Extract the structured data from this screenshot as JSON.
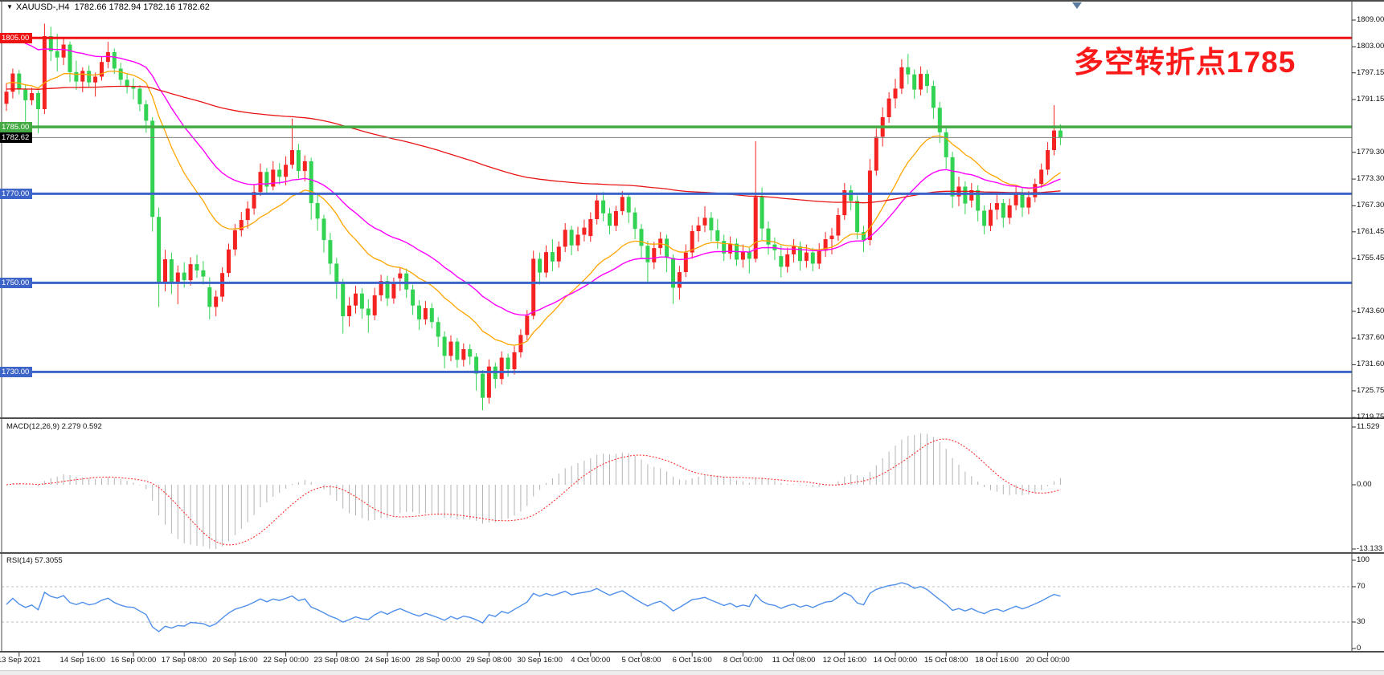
{
  "header": {
    "dropdown_icon": "▼",
    "symbol": "XAUUSD-,H4",
    "ohlc": "1782.66 1782.94 1782.16 1782.62"
  },
  "annotation": {
    "text": "多空转折点1785",
    "color": "#fb1a1a"
  },
  "indicators": {
    "macd_label": "MACD(12,26,9) 2.279 0.592",
    "rsi_label": "RSI(14) 57.3055"
  },
  "chart_data": {
    "type": "candlestick",
    "symbol": "XAUUSD-",
    "timeframe": "H4",
    "quote": {
      "open": 1782.66,
      "high": 1782.94,
      "low": 1782.16,
      "close": 1782.62
    },
    "colors": {
      "candle_up": "#f52222",
      "candle_down": "#32d252",
      "ma_fast": "#ffa500",
      "ma_mid": "#ff00ff",
      "ma_slow": "#e81414",
      "macd_hist": "#b3b3b3",
      "macd_signal": "#ff3030",
      "rsi_line": "#4f8feb",
      "current_price_line": "#808080"
    },
    "levels": [
      {
        "price": 1805.0,
        "color": "#ef1212",
        "width": 3,
        "badge_text": "1805.00"
      },
      {
        "price": 1785.0,
        "color": "#44aa44",
        "width": 3.5,
        "badge_text": "1785.00"
      },
      {
        "price": 1770.0,
        "color": "#3d64c8",
        "width": 3,
        "badge_text": "1770.00"
      },
      {
        "price": 1750.0,
        "color": "#3d64c8",
        "width": 3,
        "badge_text": "1750.00"
      },
      {
        "price": 1730.0,
        "color": "#3d64c8",
        "width": 3,
        "badge_text": "1730.00"
      }
    ],
    "current_price": {
      "value": 1782.62,
      "badge_text": "1782.62",
      "badge_color": "#000000"
    },
    "price_axis": {
      "range_top": 1809.0,
      "range_bottom": 1719.75,
      "ticks": [
        {
          "text": "1809.00",
          "price": 1809.0
        },
        {
          "text": "1803.00",
          "price": 1803.0
        },
        {
          "text": "1797.15",
          "price": 1797.15
        },
        {
          "text": "1791.15",
          "price": 1791.15
        },
        {
          "text": "1779.30",
          "price": 1779.3
        },
        {
          "text": "1773.30",
          "price": 1773.3
        },
        {
          "text": "1767.30",
          "price": 1767.3
        },
        {
          "text": "1761.45",
          "price": 1761.45
        },
        {
          "text": "1755.45",
          "price": 1755.45
        },
        {
          "text": "1743.60",
          "price": 1743.6
        },
        {
          "text": "1737.60",
          "price": 1737.6
        },
        {
          "text": "1731.60",
          "price": 1731.6
        },
        {
          "text": "1725.75",
          "price": 1725.75
        },
        {
          "text": "1719.75",
          "price": 1719.75
        }
      ]
    },
    "macd_axis": {
      "ticks": [
        {
          "text": "11.529",
          "value": 11.529
        },
        {
          "text": "0.00",
          "value": 0
        },
        {
          "text": "-13.133",
          "value": -13.133
        }
      ],
      "params": {
        "fast": 12,
        "slow": 26,
        "signal": 9
      },
      "last_value": 2.279,
      "last_signal": 0.592
    },
    "rsi_axis": {
      "ticks": [
        {
          "text": "100",
          "value": 100
        },
        {
          "text": "70",
          "value": 70
        },
        {
          "text": "30",
          "value": 30
        },
        {
          "text": "0",
          "value": 0
        }
      ],
      "levels": [
        70,
        30
      ],
      "period": 14,
      "last_value": 57.3055
    },
    "time_axis": [
      {
        "text": "13 Sep 2021",
        "bar": 0
      },
      {
        "text": "14 Sep 16:00",
        "bar": 10
      },
      {
        "text": "16 Sep 00:00",
        "bar": 18
      },
      {
        "text": "17 Sep 08:00",
        "bar": 26
      },
      {
        "text": "20 Sep 16:00",
        "bar": 34
      },
      {
        "text": "22 Sep 00:00",
        "bar": 42
      },
      {
        "text": "23 Sep 08:00",
        "bar": 50
      },
      {
        "text": "24 Sep 16:00",
        "bar": 58
      },
      {
        "text": "28 Sep 00:00",
        "bar": 66
      },
      {
        "text": "29 Sep 08:00",
        "bar": 74
      },
      {
        "text": "30 Sep 16:00",
        "bar": 82
      },
      {
        "text": "4 Oct 00:00",
        "bar": 90
      },
      {
        "text": "5 Oct 08:00",
        "bar": 98
      },
      {
        "text": "6 Oct 16:00",
        "bar": 106
      },
      {
        "text": "8 Oct 00:00",
        "bar": 114
      },
      {
        "text": "11 Oct 08:00",
        "bar": 122
      },
      {
        "text": "12 Oct 16:00",
        "bar": 130
      },
      {
        "text": "14 Oct 00:00",
        "bar": 138
      },
      {
        "text": "15 Oct 08:00",
        "bar": 146
      },
      {
        "text": "18 Oct 16:00",
        "bar": 154
      },
      {
        "text": "20 Oct 00:00",
        "bar": 162
      }
    ],
    "lead_in_bars": 2,
    "moving_averages": [
      {
        "name": "fast",
        "estimated_period": 18,
        "seed": 1795.0,
        "color": "#ffa500",
        "width": 1.3
      },
      {
        "name": "mid",
        "estimated_period": 34,
        "seed": 1806.5,
        "color": "#ff00ff",
        "width": 1.4
      },
      {
        "name": "slow",
        "estimated_period": 200,
        "seed": 1793.5,
        "color": "#e81414",
        "width": 1.3
      }
    ],
    "candles": [
      [
        1790.2,
        1794.8,
        1788.6,
        1792.9
      ],
      [
        1792.9,
        1798.1,
        1791.4,
        1797.0
      ],
      [
        1797.0,
        1797.8,
        1792.3,
        1793.4
      ],
      [
        1793.4,
        1794.6,
        1786.2,
        1791.0
      ],
      [
        1791.0,
        1793.8,
        1789.9,
        1792.6
      ],
      [
        1792.6,
        1793.2,
        1783.6,
        1789.0
      ],
      [
        1789.0,
        1808.2,
        1787.9,
        1805.4
      ],
      [
        1805.4,
        1807.5,
        1799.8,
        1802.0
      ],
      [
        1802.0,
        1805.9,
        1797.5,
        1800.6
      ],
      [
        1800.6,
        1804.8,
        1798.9,
        1803.5
      ],
      [
        1803.5,
        1804.2,
        1795.1,
        1797.3
      ],
      [
        1797.3,
        1799.9,
        1793.3,
        1795.2
      ],
      [
        1795.2,
        1798.4,
        1792.8,
        1797.6
      ],
      [
        1797.6,
        1798.8,
        1793.9,
        1795.0
      ],
      [
        1795.0,
        1797.2,
        1791.8,
        1796.3
      ],
      [
        1796.3,
        1800.9,
        1795.4,
        1799.6
      ],
      [
        1799.6,
        1804.1,
        1798.2,
        1801.8
      ],
      [
        1801.8,
        1802.6,
        1796.9,
        1798.1
      ],
      [
        1798.1,
        1799.4,
        1794.3,
        1795.6
      ],
      [
        1795.6,
        1797.0,
        1792.5,
        1794.0
      ],
      [
        1794.0,
        1795.9,
        1791.2,
        1793.6
      ],
      [
        1793.6,
        1794.4,
        1788.5,
        1790.1
      ],
      [
        1790.1,
        1791.0,
        1783.7,
        1786.4
      ],
      [
        1786.4,
        1787.2,
        1761.5,
        1764.8
      ],
      [
        1764.8,
        1766.9,
        1744.6,
        1750.2
      ],
      [
        1750.2,
        1757.4,
        1748.1,
        1755.3
      ],
      [
        1755.3,
        1756.8,
        1747.5,
        1749.8
      ],
      [
        1749.8,
        1753.9,
        1745.2,
        1752.3
      ],
      [
        1752.3,
        1754.6,
        1748.9,
        1750.6
      ],
      [
        1750.6,
        1755.7,
        1749.4,
        1754.2
      ],
      [
        1754.2,
        1756.3,
        1751.1,
        1752.8
      ],
      [
        1752.8,
        1754.9,
        1749.6,
        1751.4
      ],
      [
        1749.0,
        1751.2,
        1741.8,
        1744.6
      ],
      [
        1744.6,
        1748.3,
        1742.5,
        1746.9
      ],
      [
        1746.9,
        1753.5,
        1745.8,
        1752.2
      ],
      [
        1752.2,
        1758.8,
        1751.3,
        1757.5
      ],
      [
        1757.5,
        1763.2,
        1756.1,
        1761.8
      ],
      [
        1761.8,
        1765.9,
        1760.4,
        1764.1
      ],
      [
        1764.1,
        1768.3,
        1762.2,
        1766.7
      ],
      [
        1766.7,
        1772.1,
        1765.3,
        1770.4
      ],
      [
        1770.4,
        1776.8,
        1769.5,
        1774.9
      ],
      [
        1774.9,
        1775.8,
        1769.9,
        1771.6
      ],
      [
        1771.6,
        1777.3,
        1770.8,
        1775.4
      ],
      [
        1775.4,
        1776.9,
        1772.1,
        1773.8
      ],
      [
        1773.8,
        1778.4,
        1771.9,
        1776.5
      ],
      [
        1776.5,
        1786.9,
        1775.6,
        1779.8
      ],
      [
        1779.8,
        1781.2,
        1773.4,
        1775.1
      ],
      [
        1775.1,
        1778.6,
        1772.8,
        1777.3
      ],
      [
        1777.3,
        1778.1,
        1764.2,
        1767.9
      ],
      [
        1767.9,
        1769.8,
        1761.7,
        1764.4
      ],
      [
        1764.4,
        1765.3,
        1756.8,
        1759.6
      ],
      [
        1759.6,
        1761.2,
        1751.9,
        1754.3
      ],
      [
        1754.3,
        1755.6,
        1746.4,
        1749.8
      ],
      [
        1749.8,
        1750.9,
        1738.6,
        1742.5
      ],
      [
        1742.5,
        1746.8,
        1740.2,
        1744.9
      ],
      [
        1744.9,
        1749.3,
        1743.1,
        1747.6
      ],
      [
        1747.6,
        1748.8,
        1741.9,
        1744.2
      ],
      [
        1744.2,
        1746.3,
        1738.8,
        1742.7
      ],
      [
        1742.7,
        1748.9,
        1741.6,
        1747.2
      ],
      [
        1747.2,
        1751.8,
        1745.9,
        1750.4
      ],
      [
        1750.4,
        1751.6,
        1744.8,
        1746.5
      ],
      [
        1746.5,
        1751.2,
        1745.3,
        1749.8
      ],
      [
        1751.0,
        1753.4,
        1748.2,
        1752.1
      ],
      [
        1752.1,
        1753.2,
        1746.6,
        1748.5
      ],
      [
        1748.5,
        1749.6,
        1742.8,
        1744.9
      ],
      [
        1744.9,
        1746.1,
        1739.4,
        1741.8
      ],
      [
        1741.8,
        1745.9,
        1740.6,
        1744.3
      ],
      [
        1744.3,
        1745.4,
        1739.8,
        1741.2
      ],
      [
        1741.2,
        1742.3,
        1735.6,
        1737.9
      ],
      [
        1737.9,
        1739.1,
        1730.8,
        1733.6
      ],
      [
        1733.6,
        1738.2,
        1732.4,
        1736.8
      ],
      [
        1736.8,
        1737.6,
        1730.9,
        1732.7
      ],
      [
        1732.7,
        1736.4,
        1731.2,
        1735.1
      ],
      [
        1735.1,
        1736.2,
        1731.6,
        1733.4
      ],
      [
        1733.4,
        1734.2,
        1725.8,
        1729.6
      ],
      [
        1729.6,
        1730.4,
        1721.4,
        1724.2
      ],
      [
        1724.2,
        1732.8,
        1722.9,
        1731.2
      ],
      [
        1731.2,
        1732.1,
        1726.3,
        1728.4
      ],
      [
        1728.4,
        1734.6,
        1727.2,
        1733.2
      ],
      [
        1733.2,
        1734.1,
        1728.9,
        1730.6
      ],
      [
        1730.6,
        1735.8,
        1729.4,
        1734.4
      ],
      [
        1734.4,
        1739.6,
        1733.2,
        1738.3
      ],
      [
        1738.3,
        1743.9,
        1737.1,
        1742.6
      ],
      [
        1742.6,
        1757.2,
        1741.8,
        1755.4
      ],
      [
        1755.4,
        1756.8,
        1749.6,
        1752.3
      ],
      [
        1752.3,
        1758.4,
        1751.2,
        1756.9
      ],
      [
        1756.9,
        1759.8,
        1752.6,
        1754.8
      ],
      [
        1754.8,
        1759.3,
        1753.4,
        1758.1
      ],
      [
        1758.1,
        1763.4,
        1756.9,
        1761.9
      ],
      [
        1761.9,
        1762.8,
        1756.2,
        1758.4
      ],
      [
        1758.4,
        1762.6,
        1757.1,
        1760.8
      ],
      [
        1760.8,
        1764.2,
        1759.3,
        1762.4
      ],
      [
        1760.5,
        1765.8,
        1759.2,
        1764.3
      ],
      [
        1764.3,
        1769.9,
        1763.1,
        1768.5
      ],
      [
        1768.5,
        1770.4,
        1763.8,
        1765.6
      ],
      [
        1765.6,
        1766.8,
        1760.9,
        1762.8
      ],
      [
        1762.8,
        1767.3,
        1761.6,
        1766.1
      ],
      [
        1766.1,
        1770.6,
        1765.2,
        1769.3
      ],
      [
        1769.3,
        1770.2,
        1763.4,
        1765.8
      ],
      [
        1765.8,
        1766.9,
        1759.8,
        1762.1
      ],
      [
        1762.1,
        1763.2,
        1755.6,
        1758.3
      ],
      [
        1758.3,
        1759.4,
        1749.8,
        1754.6
      ],
      [
        1754.6,
        1759.2,
        1753.1,
        1757.8
      ],
      [
        1757.8,
        1761.4,
        1756.3,
        1759.9
      ],
      [
        1759.9,
        1760.8,
        1752.4,
        1755.6
      ],
      [
        1755.6,
        1756.4,
        1745.3,
        1748.9
      ],
      [
        1748.9,
        1753.8,
        1746.2,
        1752.4
      ],
      [
        1752.4,
        1758.6,
        1751.3,
        1756.8
      ],
      [
        1756.8,
        1762.9,
        1755.4,
        1761.6
      ],
      [
        1761.6,
        1764.8,
        1759.2,
        1762.9
      ],
      [
        1762.9,
        1767.2,
        1761.4,
        1764.6
      ],
      [
        1764.6,
        1765.9,
        1759.3,
        1761.8
      ],
      [
        1761.8,
        1764.3,
        1757.6,
        1759.4
      ],
      [
        1759.4,
        1760.8,
        1754.9,
        1756.6
      ],
      [
        1756.6,
        1760.4,
        1755.3,
        1758.8
      ],
      [
        1758.8,
        1759.9,
        1753.8,
        1755.2
      ],
      [
        1755.2,
        1758.6,
        1753.4,
        1756.9
      ],
      [
        1756.9,
        1757.8,
        1752.1,
        1755.4
      ],
      [
        1755.4,
        1781.8,
        1754.6,
        1769.3
      ],
      [
        1769.3,
        1771.4,
        1759.6,
        1762.2
      ],
      [
        1762.2,
        1763.8,
        1756.3,
        1758.6
      ],
      [
        1758.6,
        1760.2,
        1755.1,
        1757.3
      ],
      [
        1756.0,
        1758.4,
        1751.2,
        1753.6
      ],
      [
        1753.6,
        1757.9,
        1752.3,
        1756.4
      ],
      [
        1756.4,
        1759.8,
        1754.6,
        1758.2
      ],
      [
        1758.2,
        1759.3,
        1752.8,
        1754.9
      ],
      [
        1754.9,
        1758.6,
        1753.4,
        1756.8
      ],
      [
        1756.8,
        1757.9,
        1752.6,
        1754.3
      ],
      [
        1754.3,
        1758.9,
        1753.1,
        1757.2
      ],
      [
        1757.2,
        1761.4,
        1755.8,
        1759.8
      ],
      [
        1759.8,
        1762.3,
        1756.4,
        1760.6
      ],
      [
        1760.6,
        1766.8,
        1759.4,
        1765.2
      ],
      [
        1765.2,
        1772.4,
        1764.1,
        1770.8
      ],
      [
        1770.8,
        1771.9,
        1766.3,
        1768.4
      ],
      [
        1768.4,
        1769.6,
        1759.8,
        1761.4
      ],
      [
        1761.4,
        1762.8,
        1756.9,
        1759.6
      ],
      [
        1759.6,
        1777.8,
        1758.4,
        1775.2
      ],
      [
        1775.2,
        1784.6,
        1774.1,
        1782.8
      ],
      [
        1782.8,
        1789.4,
        1780.6,
        1787.2
      ],
      [
        1787.2,
        1792.8,
        1785.9,
        1791.4
      ],
      [
        1791.4,
        1795.8,
        1789.2,
        1793.6
      ],
      [
        1793.6,
        1800.2,
        1792.4,
        1798.4
      ],
      [
        1798.4,
        1801.4,
        1794.6,
        1796.8
      ],
      [
        1796.8,
        1797.9,
        1791.3,
        1793.4
      ],
      [
        1793.4,
        1798.6,
        1792.1,
        1796.9
      ],
      [
        1796.9,
        1797.8,
        1792.6,
        1794.2
      ],
      [
        1794.2,
        1795.4,
        1786.8,
        1789.3
      ],
      [
        1789.3,
        1790.6,
        1781.4,
        1783.8
      ],
      [
        1783.8,
        1784.9,
        1775.6,
        1778.2
      ],
      [
        1778.2,
        1779.4,
        1766.8,
        1769.4
      ],
      [
        1769.4,
        1773.8,
        1767.2,
        1771.6
      ],
      [
        1771.6,
        1772.8,
        1765.4,
        1767.8
      ],
      [
        1768.5,
        1772.4,
        1766.9,
        1770.8
      ],
      [
        1770.8,
        1771.9,
        1763.8,
        1766.2
      ],
      [
        1766.2,
        1767.4,
        1760.9,
        1762.8
      ],
      [
        1762.8,
        1767.9,
        1761.6,
        1766.4
      ],
      [
        1766.4,
        1769.8,
        1764.2,
        1767.9
      ],
      [
        1767.9,
        1768.8,
        1762.4,
        1764.6
      ],
      [
        1764.6,
        1768.9,
        1763.2,
        1767.4
      ],
      [
        1767.4,
        1771.8,
        1766.3,
        1770.2
      ],
      [
        1770.2,
        1771.4,
        1764.8,
        1766.9
      ],
      [
        1766.9,
        1770.6,
        1765.4,
        1769.2
      ],
      [
        1769.2,
        1773.4,
        1768.1,
        1772.2
      ],
      [
        1772.2,
        1776.8,
        1771.3,
        1775.4
      ],
      [
        1775.4,
        1781.6,
        1774.2,
        1779.8
      ],
      [
        1779.8,
        1789.9,
        1778.6,
        1784.2
      ],
      [
        1784.2,
        1785.6,
        1780.9,
        1782.6
      ]
    ]
  }
}
